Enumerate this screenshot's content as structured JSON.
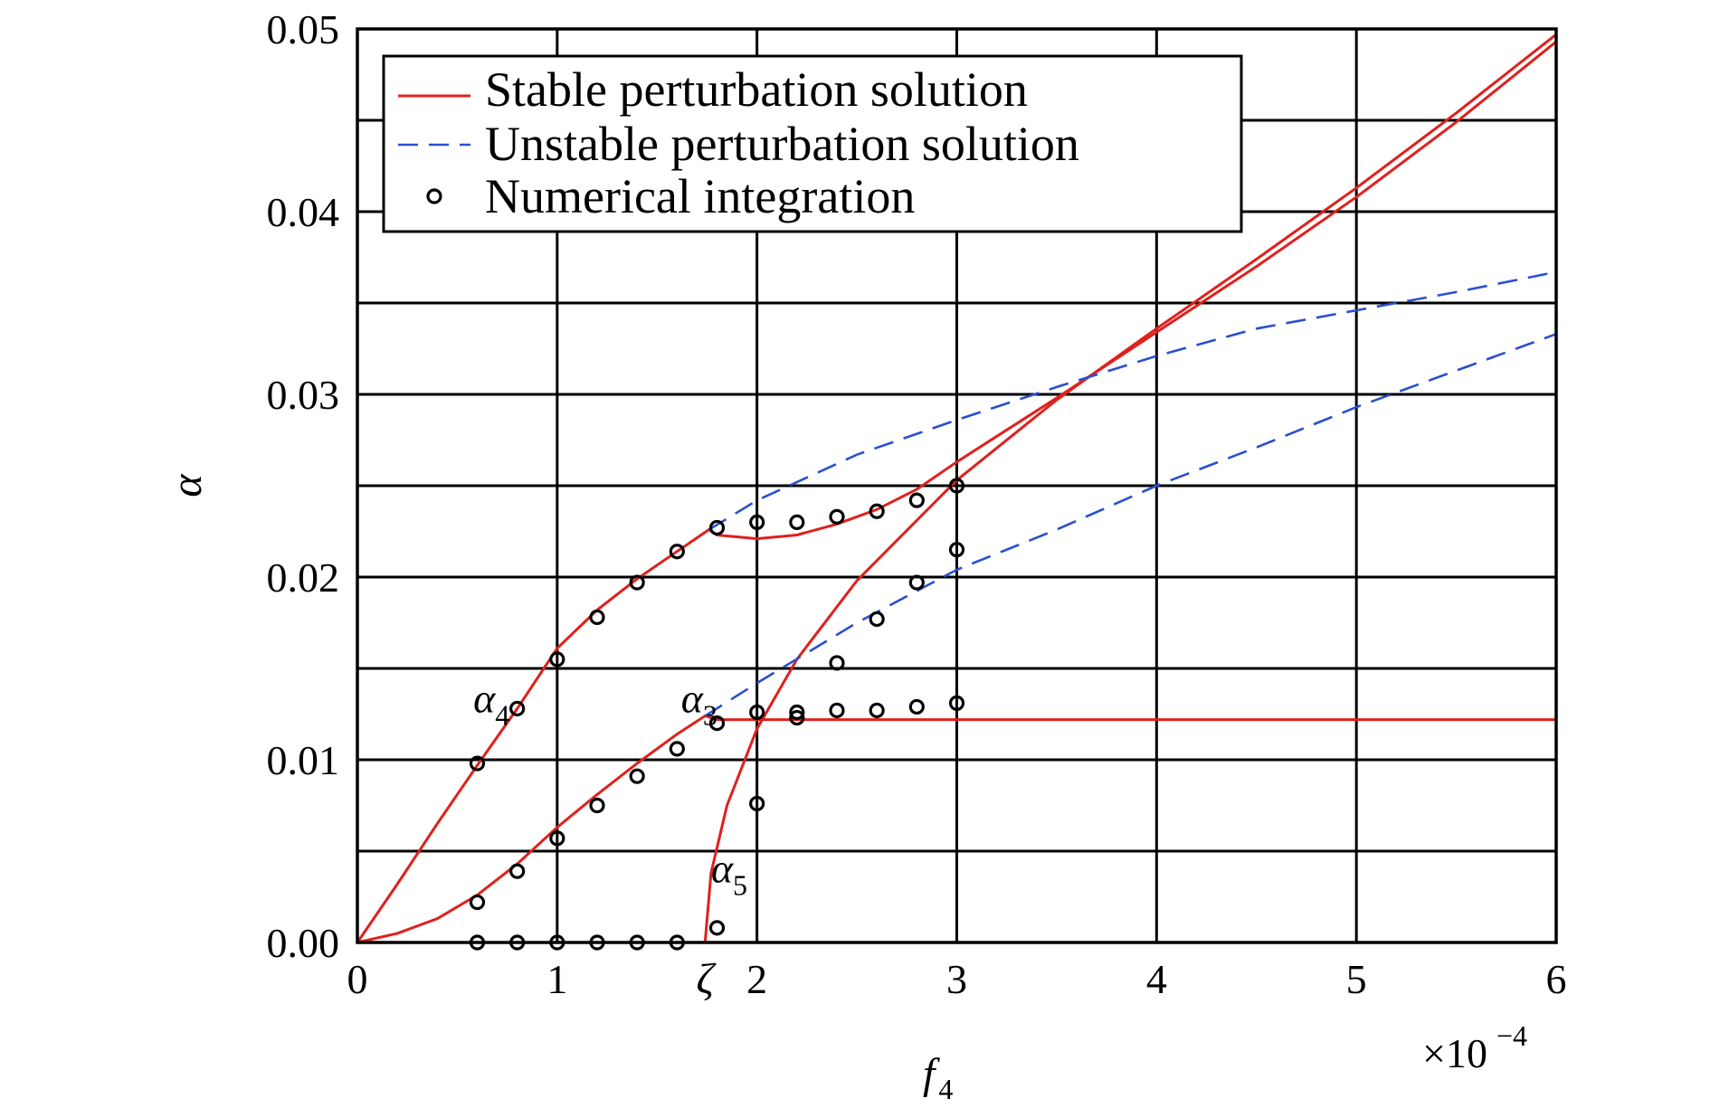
{
  "chart_data": {
    "type": "line",
    "xlabel": "f",
    "xlabel_sub": "4",
    "ylabel": "α",
    "x_multiplier": "×10",
    "x_multiplier_exp": "−4",
    "xlim": [
      0,
      6
    ],
    "ylim": [
      0,
      0.05
    ],
    "x_ticks": [
      {
        "value": 0,
        "label": "0"
      },
      {
        "value": 1,
        "label": "1"
      },
      {
        "value": 1.74,
        "label": "ζ"
      },
      {
        "value": 2,
        "label": "2"
      },
      {
        "value": 3,
        "label": "3"
      },
      {
        "value": 4,
        "label": "4"
      },
      {
        "value": 5,
        "label": "5"
      },
      {
        "value": 6,
        "label": "6"
      }
    ],
    "y_ticks": [
      {
        "value": 0,
        "label": "0.00"
      },
      {
        "value": 0.01,
        "label": "0.01"
      },
      {
        "value": 0.02,
        "label": "0.02"
      },
      {
        "value": 0.03,
        "label": "0.03"
      },
      {
        "value": 0.04,
        "label": "0.04"
      },
      {
        "value": 0.05,
        "label": "0.05"
      }
    ],
    "x_grid": [
      1,
      2,
      3,
      4,
      5
    ],
    "y_grid": [
      0.005,
      0.01,
      0.015,
      0.02,
      0.025,
      0.03,
      0.035,
      0.04,
      0.045
    ],
    "grid": true,
    "legend_position": "top-left",
    "legend": [
      {
        "label": "Stable perturbation solution",
        "kind": "stable"
      },
      {
        "label": "Unstable perturbation solution",
        "kind": "unstable"
      },
      {
        "label": "Numerical integration",
        "kind": "marker"
      }
    ],
    "colors": {
      "stable": "#e0201c",
      "unstable": "#2a4fd0",
      "marker": "#000000"
    },
    "series": [
      {
        "kind": "stable",
        "x": [
          0,
          0.2,
          0.4,
          0.6,
          0.8,
          1.0,
          1.2,
          1.4,
          1.6,
          1.76,
          1.8,
          2.0,
          2.2,
          2.4,
          2.6,
          2.8,
          3.0,
          3.5,
          4.0,
          4.5,
          5.0,
          5.5,
          6.0
        ],
        "y": [
          0,
          0.0032,
          0.0065,
          0.0097,
          0.0128,
          0.0161,
          0.0182,
          0.0199,
          0.0214,
          0.0226,
          0.0223,
          0.0221,
          0.0223,
          0.0229,
          0.0237,
          0.0248,
          0.0263,
          0.0298,
          0.0334,
          0.037,
          0.0408,
          0.0449,
          0.0493
        ]
      },
      {
        "kind": "stable",
        "x": [
          0,
          0.2,
          0.4,
          0.6,
          0.8,
          1.0,
          1.2,
          1.4,
          1.6,
          1.74,
          1.8,
          2.0,
          2.2,
          2.5,
          3.0,
          3.5,
          4.0,
          4.5,
          5.0,
          5.5,
          6.0
        ],
        "y": [
          0,
          0.0005,
          0.0013,
          0.0026,
          0.0043,
          0.0063,
          0.0081,
          0.0098,
          0.0114,
          0.0124,
          0.0122,
          0.0122,
          0.0122,
          0.0122,
          0.0122,
          0.0122,
          0.0122,
          0.0122,
          0.0122,
          0.0122,
          0.0122
        ]
      },
      {
        "kind": "stable",
        "x": [
          0,
          0.5,
          1.0,
          1.5,
          1.74
        ],
        "y": [
          0,
          0,
          0,
          0,
          0
        ]
      },
      {
        "kind": "stable",
        "x": [
          1.74,
          1.77,
          1.85,
          2.0,
          2.2,
          2.5,
          3.0,
          3.5,
          4.0,
          4.5,
          5.0,
          5.5,
          6.0
        ],
        "y": [
          0,
          0.0038,
          0.0075,
          0.0117,
          0.0155,
          0.0198,
          0.0253,
          0.0297,
          0.0336,
          0.0374,
          0.0413,
          0.0454,
          0.0497
        ]
      },
      {
        "kind": "unstable",
        "x": [
          1.76,
          2.0,
          2.5,
          3.0,
          3.5,
          4.0,
          4.5,
          5.0,
          5.5,
          6.0
        ],
        "y": [
          0.0226,
          0.0242,
          0.0267,
          0.0286,
          0.0304,
          0.0321,
          0.0336,
          0.0346,
          0.0356,
          0.0367
        ]
      },
      {
        "kind": "unstable",
        "x": [
          1.74,
          2.0,
          2.5,
          3.0,
          3.5,
          4.0,
          4.5,
          5.0,
          5.5,
          6.0
        ],
        "y": [
          0.0124,
          0.0142,
          0.0175,
          0.0204,
          0.0226,
          0.025,
          0.0271,
          0.0293,
          0.0313,
          0.0333
        ]
      },
      {
        "kind": "unstable",
        "x": [
          2.0,
          3.0,
          4.0,
          5.0,
          6.0
        ],
        "y": [
          0,
          0,
          0,
          0,
          0
        ]
      }
    ],
    "markers": {
      "x": [
        0.6,
        0.8,
        1.0,
        1.2,
        1.4,
        1.6,
        1.8,
        2.0,
        2.2,
        2.4,
        2.6,
        2.8,
        3.0,
        0.6,
        0.8,
        1.0,
        1.2,
        1.4,
        1.6,
        1.8,
        2.0,
        2.2,
        2.2,
        2.4,
        2.6,
        2.8,
        3.0,
        0.6,
        0.8,
        1.0,
        1.2,
        1.4,
        1.6,
        1.8,
        2.0,
        2.4,
        2.6,
        2.8,
        3.0
      ],
      "y": [
        0.0098,
        0.0128,
        0.0155,
        0.0178,
        0.0197,
        0.0214,
        0.0227,
        0.023,
        0.023,
        0.0233,
        0.0236,
        0.0242,
        0.025,
        0.0022,
        0.0039,
        0.0057,
        0.0075,
        0.0091,
        0.0106,
        0.012,
        0.0126,
        0.0126,
        0.0123,
        0.0127,
        0.0127,
        0.0129,
        0.0131,
        0,
        0,
        0,
        0,
        0,
        0,
        0.0008,
        0.0076,
        0.0153,
        0.0177,
        0.0197,
        0.0215
      ]
    },
    "annotations": [
      {
        "text": "α",
        "sub": "4",
        "x": 0.58,
        "y": 0.0126
      },
      {
        "text": "α",
        "sub": "3",
        "x": 1.62,
        "y": 0.0126
      },
      {
        "text": "α",
        "sub": "5",
        "x": 1.77,
        "y": 0.0033
      }
    ]
  }
}
